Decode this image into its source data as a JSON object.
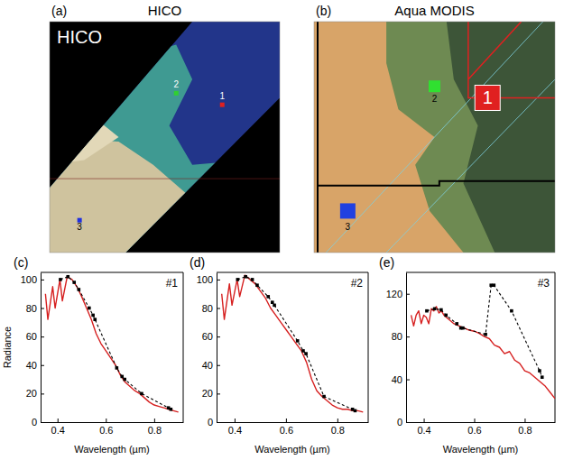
{
  "images": [
    {
      "letter": "(a)",
      "title": "HICO",
      "inset_label": "HICO",
      "points": [
        "1",
        "2",
        "3"
      ]
    },
    {
      "letter": "(b)",
      "title": "Aqua MODIS",
      "points": [
        "1",
        "2",
        "3"
      ]
    }
  ],
  "chart_data": [
    {
      "type": "line",
      "panel": "(c)",
      "title": "#1",
      "x_label": "Wavelength (µm)",
      "y_label": "Radiance",
      "xlim": [
        0.33,
        0.92
      ],
      "xticks": [
        0.4,
        0.6,
        0.8
      ],
      "ylim": [
        0,
        105
      ],
      "yticks": [
        0,
        20,
        40,
        60,
        80,
        100
      ],
      "series": [
        {
          "color": "#d62020",
          "line_style": "solid",
          "x": [
            0.35,
            0.36,
            0.38,
            0.39,
            0.41,
            0.42,
            0.44,
            0.46,
            0.48,
            0.5,
            0.52,
            0.54,
            0.56,
            0.58,
            0.6,
            0.62,
            0.64,
            0.66,
            0.68,
            0.7,
            0.72,
            0.74,
            0.76,
            0.78,
            0.8,
            0.82,
            0.84,
            0.86,
            0.88,
            0.9
          ],
          "values": [
            90,
            72,
            95,
            80,
            100,
            85,
            102,
            100,
            95,
            88,
            80,
            72,
            62,
            55,
            50,
            45,
            40,
            33,
            28,
            25,
            22,
            20,
            17,
            14,
            12,
            11,
            10,
            9,
            8,
            7
          ]
        },
        {
          "color": "#000000",
          "line_style": "dashed",
          "marker": "square",
          "x": [
            0.412,
            0.443,
            0.469,
            0.488,
            0.531,
            0.547,
            0.555,
            0.645,
            0.667,
            0.678,
            0.748,
            0.859,
            0.869
          ],
          "values": [
            100,
            102,
            98,
            93,
            80,
            75,
            72,
            38,
            32,
            30,
            20,
            10,
            9
          ]
        }
      ]
    },
    {
      "type": "line",
      "panel": "(d)",
      "title": "#2",
      "x_label": "Wavelength (µm)",
      "xlim": [
        0.33,
        0.92
      ],
      "xticks": [
        0.4,
        0.6,
        0.8
      ],
      "ylim": [
        0,
        105
      ],
      "yticks": [
        0,
        20,
        40,
        60,
        80,
        100
      ],
      "series": [
        {
          "color": "#d62020",
          "line_style": "solid",
          "x": [
            0.35,
            0.36,
            0.38,
            0.39,
            0.41,
            0.42,
            0.44,
            0.46,
            0.48,
            0.5,
            0.52,
            0.54,
            0.56,
            0.58,
            0.6,
            0.62,
            0.64,
            0.66,
            0.68,
            0.7,
            0.72,
            0.74,
            0.76,
            0.78,
            0.8,
            0.82,
            0.84,
            0.86,
            0.88,
            0.9
          ],
          "values": [
            90,
            72,
            97,
            82,
            100,
            88,
            103,
            100,
            97,
            92,
            87,
            80,
            75,
            70,
            65,
            60,
            55,
            50,
            42,
            30,
            22,
            18,
            15,
            12,
            10,
            9,
            9,
            8,
            8,
            7
          ]
        },
        {
          "color": "#000000",
          "line_style": "dashed",
          "marker": "square",
          "x": [
            0.412,
            0.443,
            0.469,
            0.488,
            0.531,
            0.547,
            0.555,
            0.645,
            0.667,
            0.678,
            0.748,
            0.859,
            0.869
          ],
          "values": [
            100,
            102,
            100,
            96,
            88,
            84,
            82,
            57,
            50,
            48,
            18,
            9,
            8
          ]
        }
      ]
    },
    {
      "type": "line",
      "panel": "(e)",
      "title": "#3",
      "x_label": "Wavelength (µm)",
      "xlim": [
        0.33,
        0.92
      ],
      "xticks": [
        0.4,
        0.6,
        0.8
      ],
      "ylim": [
        0,
        140
      ],
      "yticks": [
        0,
        40,
        80,
        120
      ],
      "series": [
        {
          "color": "#d62020",
          "line_style": "solid",
          "x": [
            0.35,
            0.36,
            0.37,
            0.38,
            0.39,
            0.4,
            0.41,
            0.42,
            0.43,
            0.44,
            0.45,
            0.46,
            0.47,
            0.48,
            0.5,
            0.52,
            0.54,
            0.56,
            0.58,
            0.6,
            0.62,
            0.64,
            0.66,
            0.68,
            0.7,
            0.72,
            0.74,
            0.76,
            0.78,
            0.8,
            0.82,
            0.84,
            0.86,
            0.88,
            0.9,
            0.92
          ],
          "values": [
            100,
            90,
            100,
            104,
            92,
            100,
            98,
            92,
            106,
            104,
            108,
            102,
            104,
            100,
            96,
            92,
            90,
            88,
            86,
            85,
            83,
            80,
            78,
            72,
            70,
            64,
            66,
            58,
            55,
            48,
            46,
            42,
            38,
            34,
            28,
            22
          ]
        },
        {
          "color": "#000000",
          "line_style": "dashed",
          "marker": "square",
          "x": [
            0.412,
            0.443,
            0.469,
            0.488,
            0.531,
            0.547,
            0.555,
            0.645,
            0.667,
            0.678,
            0.748,
            0.859,
            0.869
          ],
          "values": [
            104,
            106,
            105,
            100,
            92,
            88,
            88,
            82,
            128,
            128,
            104,
            48,
            42
          ]
        }
      ]
    }
  ]
}
